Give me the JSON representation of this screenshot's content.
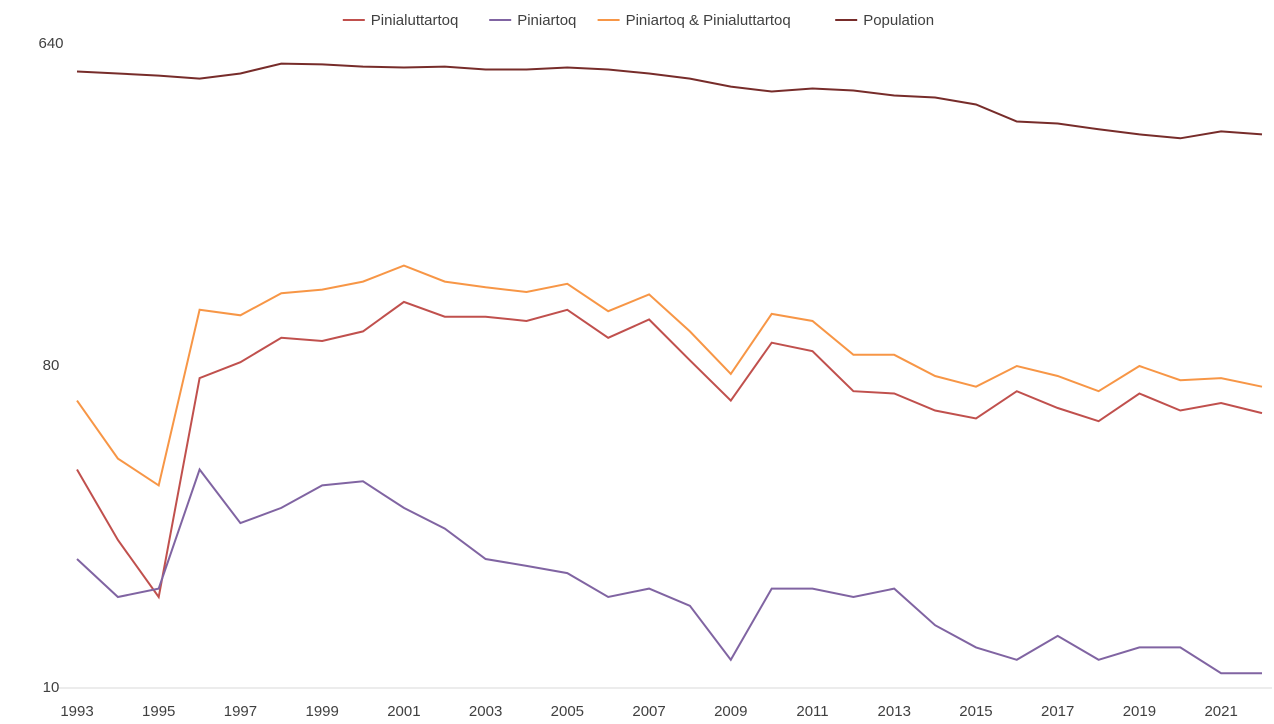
{
  "chart_data": {
    "type": "line",
    "log_scale": true,
    "x": [
      1993,
      1994,
      1995,
      1996,
      1997,
      1998,
      1999,
      2000,
      2001,
      2002,
      2003,
      2004,
      2005,
      2006,
      2007,
      2008,
      2009,
      2010,
      2011,
      2012,
      2013,
      2014,
      2015,
      2016,
      2017,
      2018,
      2019,
      2020,
      2021,
      2022
    ],
    "xlim": [
      1993,
      2022
    ],
    "xticks": [
      1993,
      1995,
      1997,
      1999,
      2001,
      2003,
      2005,
      2007,
      2009,
      2011,
      2013,
      2015,
      2017,
      2019,
      2021
    ],
    "ylim": [
      10,
      640
    ],
    "yticks": [
      10,
      80,
      640
    ],
    "legend": "top",
    "series": [
      {
        "name": "Pinialuttartoq",
        "color": "#c0504d",
        "values": [
          41,
          26,
          18,
          74,
          82,
          96,
          94,
          100,
          121,
          110,
          110,
          107,
          115,
          96,
          108,
          83,
          64,
          93,
          88,
          68,
          67,
          60,
          57,
          68,
          61,
          56,
          67,
          60,
          63,
          59
        ]
      },
      {
        "name": "Piniartoq",
        "color": "#8064a2",
        "values": [
          23,
          18,
          19,
          41,
          29,
          32,
          37,
          38,
          32,
          28,
          23,
          22,
          21,
          18,
          19,
          17,
          12,
          19,
          19,
          18,
          19,
          15,
          13,
          12,
          14,
          12,
          13,
          13,
          11,
          11
        ]
      },
      {
        "name": "Piniartoq & Pinialuttartoq",
        "color": "#f79646",
        "values": [
          64,
          44,
          37,
          115,
          111,
          128,
          131,
          138,
          153,
          138,
          133,
          129,
          136,
          114,
          127,
          100,
          76,
          112,
          107,
          86,
          86,
          75,
          70,
          80,
          75,
          68,
          80,
          73,
          74,
          70
        ]
      },
      {
        "name": "Population",
        "color": "#772c2a",
        "values": [
          536,
          529,
          522,
          512,
          529,
          564,
          561,
          553,
          550,
          553,
          543,
          543,
          550,
          543,
          529,
          512,
          486,
          471,
          480,
          474,
          459,
          453,
          433,
          388,
          383,
          369,
          357,
          348,
          364,
          357
        ]
      }
    ]
  }
}
